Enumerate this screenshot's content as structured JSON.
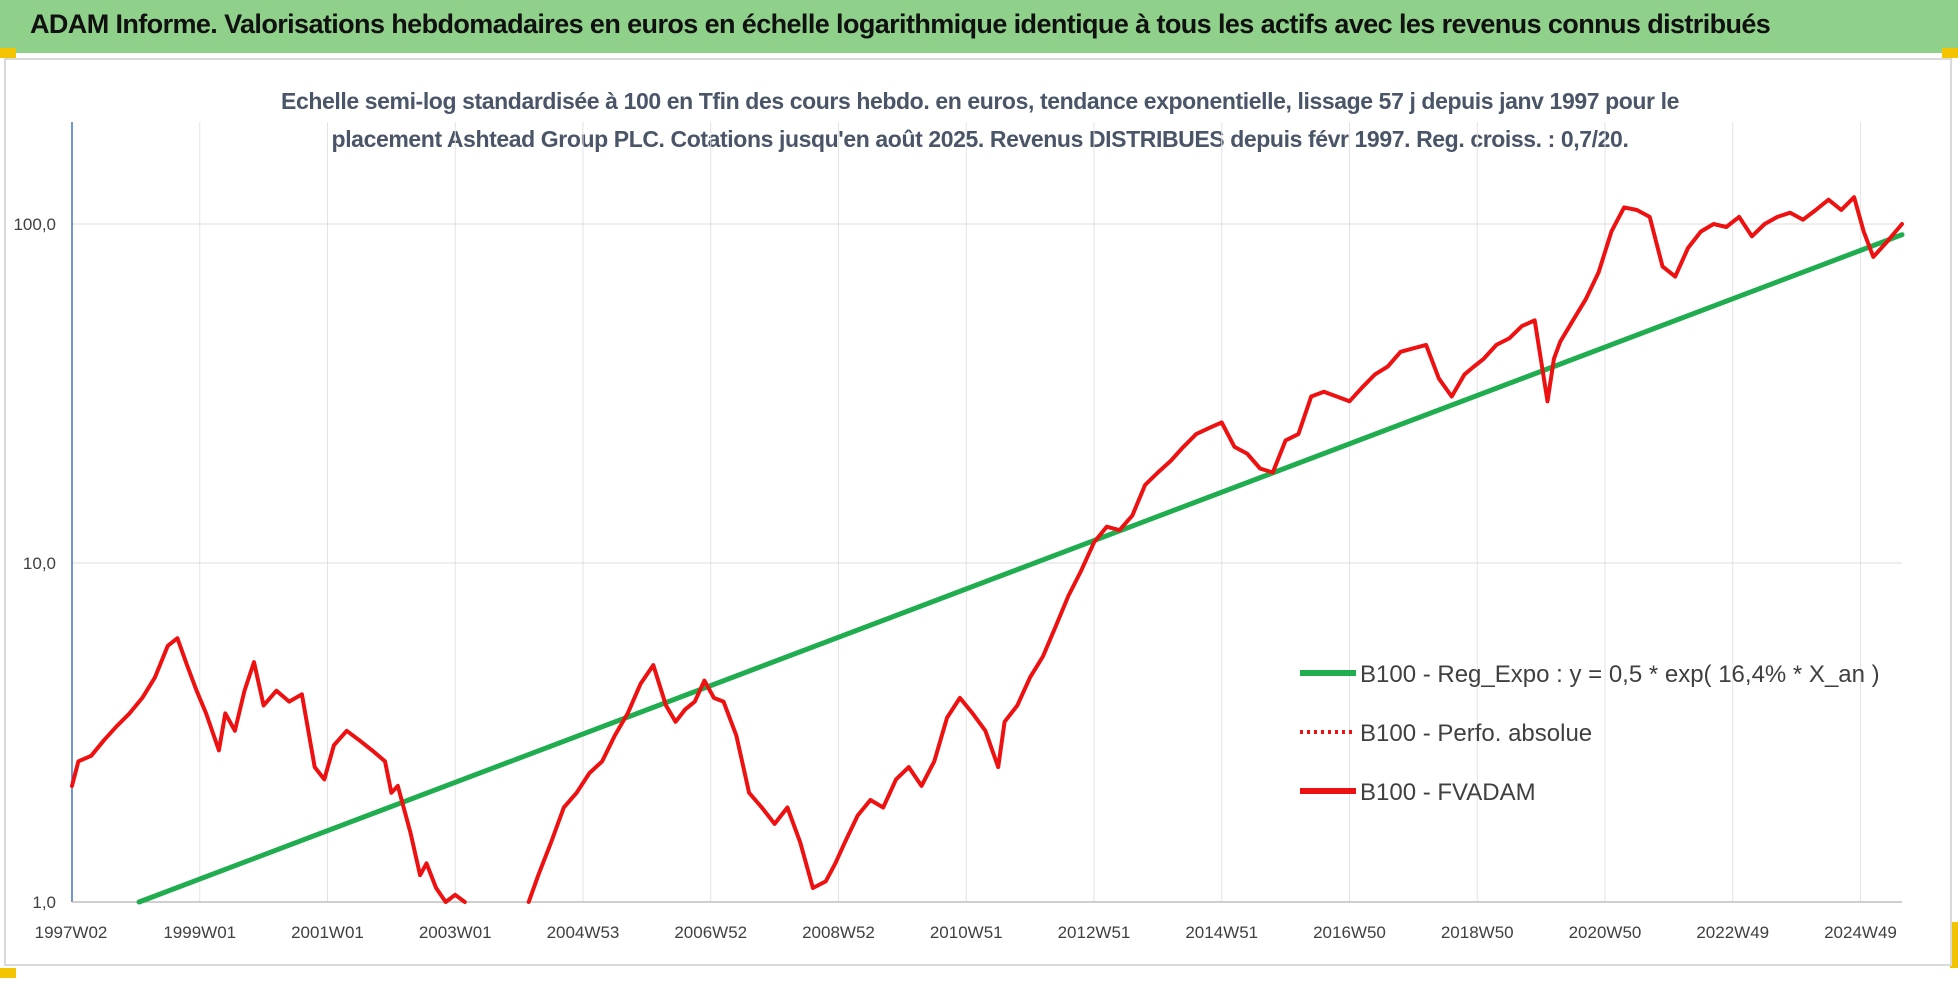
{
  "header": {
    "title": "ADAM Informe. Valorisations hebdomadaires en euros en échelle logarithmique identique à tous les actifs avec les revenus connus distribués"
  },
  "chart_data": {
    "type": "line",
    "title_line1": "Echelle semi-log standardisée à 100 en Tfin des cours hebdo. en euros, tendance exponentielle, lissage 57 j depuis janv 1997 pour le",
    "title_line2": "placement Ashtead Group PLC. Cotations jusqu'en août 2025. Revenus DISTRIBUES depuis févr 1997. Reg. croiss. : 0,7/20.",
    "y_scale": "log",
    "ylim": [
      1,
      200
    ],
    "y_ticks": [
      {
        "value": 1,
        "label": "1,0"
      },
      {
        "value": 10,
        "label": "10,0"
      },
      {
        "value": 100,
        "label": "100,0"
      }
    ],
    "xlim": [
      1997.0,
      2025.65
    ],
    "x_ticks": [
      {
        "value": 1997.02,
        "label": "1997W02"
      },
      {
        "value": 1999.0,
        "label": "1999W01"
      },
      {
        "value": 2001.0,
        "label": "2001W01"
      },
      {
        "value": 2003.0,
        "label": "2003W01"
      },
      {
        "value": 2005.0,
        "label": "2004W53"
      },
      {
        "value": 2007.0,
        "label": "2006W52"
      },
      {
        "value": 2009.0,
        "label": "2008W52"
      },
      {
        "value": 2011.0,
        "label": "2010W51"
      },
      {
        "value": 2013.0,
        "label": "2012W51"
      },
      {
        "value": 2015.0,
        "label": "2014W51"
      },
      {
        "value": 2017.0,
        "label": "2016W50"
      },
      {
        "value": 2019.0,
        "label": "2018W50"
      },
      {
        "value": 2021.0,
        "label": "2020W50"
      },
      {
        "value": 2023.0,
        "label": "2022W49"
      },
      {
        "value": 2025.0,
        "label": "2024W49"
      }
    ],
    "grid": true,
    "legend_position": "right",
    "colors": {
      "trend": "#1fad4f",
      "fvadam": "#ee1111",
      "perfo": "#ee1111"
    },
    "series": [
      {
        "name": "B100 - Reg_Expo : y = 0,5 * exp( 16,4% *  X_an )",
        "style": "solid",
        "x": [
          1998.05,
          2025.65
        ],
        "y": [
          1.0,
          93
        ]
      },
      {
        "name": "B100 - Perfo. absolue",
        "style": "dotted",
        "x": [],
        "y": []
      },
      {
        "name": "B100 - FVADAM",
        "style": "solid",
        "x": [
          1997.0,
          1997.1,
          1997.3,
          1997.5,
          1997.7,
          1997.9,
          1998.1,
          1998.3,
          1998.5,
          1998.65,
          1998.8,
          1998.95,
          1999.1,
          1999.3,
          1999.4,
          1999.55,
          1999.7,
          1999.85,
          2000.0,
          2000.2,
          2000.4,
          2000.6,
          2000.8,
          2000.95,
          2001.1,
          2001.3,
          2001.5,
          2001.7,
          2001.9,
          2002.0,
          2002.1,
          2002.3,
          2002.45,
          2002.55,
          2002.7,
          2002.85,
          2003.0,
          2003.15
        ],
        "y": [
          2.2,
          2.6,
          2.7,
          3.0,
          3.3,
          3.6,
          4.0,
          4.6,
          5.7,
          6.0,
          5.0,
          4.2,
          3.6,
          2.8,
          3.6,
          3.2,
          4.2,
          5.1,
          3.8,
          4.2,
          3.9,
          4.1,
          2.5,
          2.3,
          2.9,
          3.2,
          3.0,
          2.8,
          2.6,
          2.1,
          2.2,
          1.6,
          1.2,
          1.3,
          1.1,
          1.0,
          1.05,
          1.0
        ]
      },
      {
        "name": "",
        "style": "solid",
        "x": [
          2004.15,
          2004.3,
          2004.5,
          2004.7,
          2004.9,
          2005.1,
          2005.3,
          2005.5,
          2005.7,
          2005.9,
          2006.1,
          2006.3,
          2006.45,
          2006.6,
          2006.75,
          2006.9,
          2007.05,
          2007.2,
          2007.4,
          2007.6,
          2007.8,
          2008.0,
          2008.2,
          2008.4,
          2008.6,
          2008.8,
          2008.95,
          2009.1,
          2009.3,
          2009.5,
          2009.7,
          2009.9,
          2010.1,
          2010.3,
          2010.5,
          2010.7,
          2010.9,
          2011.1,
          2011.3,
          2011.5,
          2011.6,
          2011.8,
          2012.0,
          2012.2,
          2012.4,
          2012.6,
          2012.8,
          2013.0,
          2013.2,
          2013.4,
          2013.6,
          2013.8,
          2014.0,
          2014.2,
          2014.4,
          2014.6,
          2014.8,
          2015.0,
          2015.2,
          2015.4,
          2015.6,
          2015.8,
          2016.0,
          2016.2,
          2016.4,
          2016.6,
          2016.8,
          2017.0,
          2017.2,
          2017.4,
          2017.6,
          2017.8,
          2018.0,
          2018.2,
          2018.4,
          2018.6,
          2018.8,
          2018.95,
          2019.1,
          2019.3,
          2019.5,
          2019.7,
          2019.9,
          2020.1,
          2020.2,
          2020.3,
          2020.5,
          2020.7,
          2020.9,
          2021.1,
          2021.3,
          2021.5,
          2021.7,
          2021.9,
          2022.1,
          2022.3,
          2022.5,
          2022.7,
          2022.9,
          2023.1,
          2023.3,
          2023.5,
          2023.7,
          2023.9,
          2024.1,
          2024.3,
          2024.5,
          2024.7,
          2024.9,
          2025.05,
          2025.2,
          2025.4,
          2025.65
        ],
        "y": [
          1.0,
          1.2,
          1.5,
          1.9,
          2.1,
          2.4,
          2.6,
          3.1,
          3.6,
          4.4,
          5.0,
          3.8,
          3.4,
          3.7,
          3.9,
          4.5,
          4.0,
          3.9,
          3.1,
          2.1,
          1.9,
          1.7,
          1.9,
          1.5,
          1.1,
          1.15,
          1.3,
          1.5,
          1.8,
          2.0,
          1.9,
          2.3,
          2.5,
          2.2,
          2.6,
          3.5,
          4.0,
          3.6,
          3.2,
          2.5,
          3.4,
          3.8,
          4.6,
          5.3,
          6.5,
          8.0,
          9.5,
          11.5,
          12.8,
          12.5,
          13.8,
          17.0,
          18.5,
          20.0,
          22.0,
          24.0,
          25.0,
          26.0,
          22.0,
          21.0,
          19.0,
          18.5,
          23.0,
          24.0,
          31.0,
          32.0,
          31.0,
          30.0,
          33.0,
          36.0,
          38.0,
          42.0,
          43.0,
          44.0,
          35.0,
          31.0,
          36.0,
          38.0,
          40.0,
          44.0,
          46.0,
          50.0,
          52.0,
          30.0,
          40.0,
          45.0,
          52.0,
          60.0,
          72.0,
          95.0,
          112.0,
          110.0,
          105.0,
          75.0,
          70.0,
          85.0,
          95.0,
          100.0,
          98.0,
          105.0,
          92.0,
          100.0,
          105.0,
          108.0,
          103.0,
          110.0,
          118.0,
          110.0,
          120.0,
          95.0,
          80.0,
          88.0,
          100.0
        ]
      }
    ]
  }
}
